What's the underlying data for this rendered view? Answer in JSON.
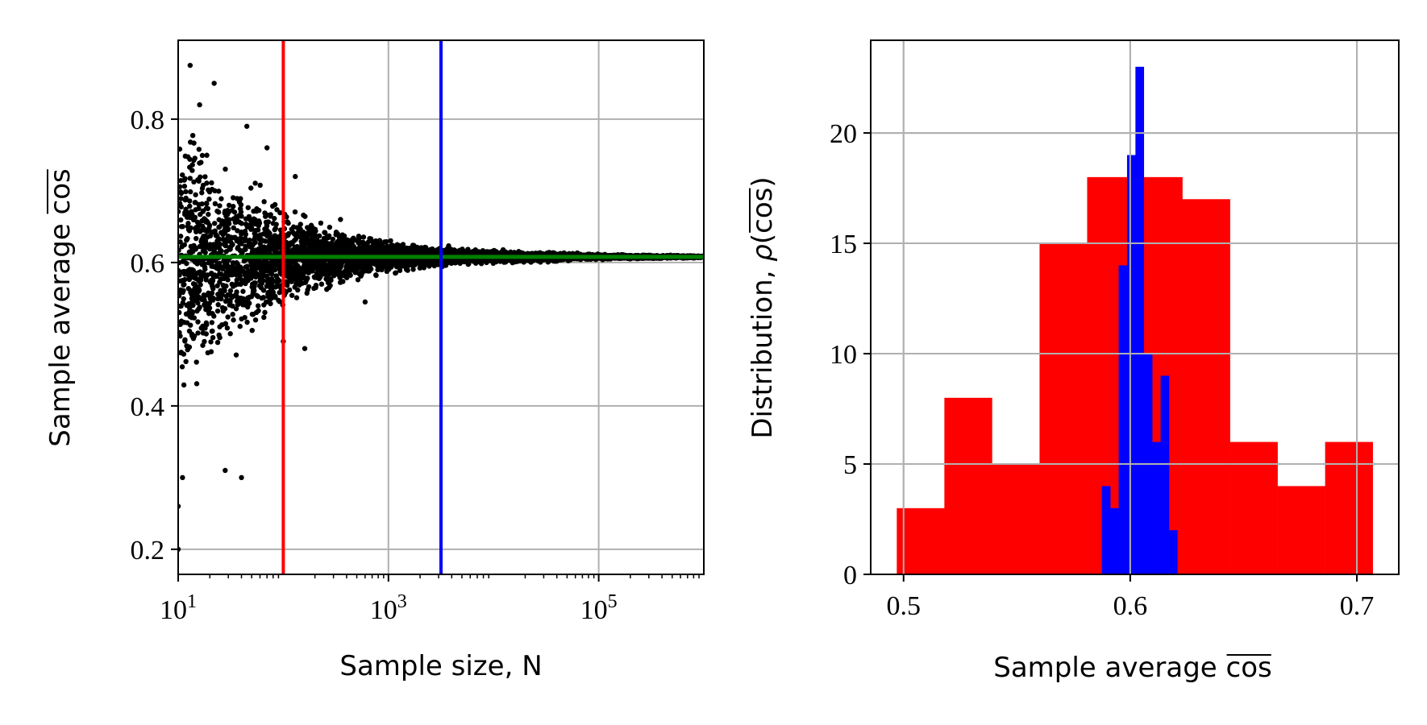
{
  "chart_data": [
    {
      "type": "scatter",
      "xlabel": "Sample size, N",
      "ylabel_prefix": "Sample average ",
      "ylabel_overline": "cos",
      "xscale": "log",
      "xlim": [
        10,
        1000000
      ],
      "ylim": [
        0.165,
        0.91
      ],
      "x_ticks": [
        {
          "value": 10,
          "base": "10",
          "exp": "1"
        },
        {
          "value": 1000,
          "base": "10",
          "exp": "3"
        },
        {
          "value": 100000,
          "base": "10",
          "exp": "5"
        }
      ],
      "y_ticks": [
        {
          "value": 0.2,
          "label": "0.2"
        },
        {
          "value": 0.4,
          "label": "0.4"
        },
        {
          "value": 0.6,
          "label": "0.6"
        },
        {
          "value": 0.8,
          "label": "0.8"
        }
      ],
      "grid": true,
      "vlines": [
        {
          "x": 100,
          "color": "#ff0000"
        },
        {
          "x": 3162,
          "color": "#0000ff"
        }
      ],
      "hlines": [
        {
          "y": 0.6079,
          "color": "#008000"
        }
      ],
      "scatter_color": "#000000",
      "scatter_envelope": [
        {
          "n": 10,
          "lo": 0.3,
          "hi": 0.86
        },
        {
          "n": 30,
          "lo": 0.43,
          "hi": 0.78
        },
        {
          "n": 100,
          "lo": 0.5,
          "hi": 0.7
        },
        {
          "n": 300,
          "lo": 0.55,
          "hi": 0.665
        },
        {
          "n": 1000,
          "lo": 0.575,
          "hi": 0.64
        },
        {
          "n": 3162,
          "lo": 0.587,
          "hi": 0.628
        },
        {
          "n": 10000,
          "lo": 0.595,
          "hi": 0.62
        },
        {
          "n": 100000,
          "lo": 0.603,
          "hi": 0.613
        },
        {
          "n": 1000000,
          "lo": 0.606,
          "hi": 0.61
        }
      ],
      "scatter_outliers": [
        {
          "x": 10,
          "y": 0.2
        },
        {
          "x": 10,
          "y": 0.26
        },
        {
          "x": 11,
          "y": 0.3
        },
        {
          "x": 13,
          "y": 0.875
        },
        {
          "x": 16,
          "y": 0.82
        },
        {
          "x": 22,
          "y": 0.85
        },
        {
          "x": 28,
          "y": 0.31
        },
        {
          "x": 40,
          "y": 0.3
        },
        {
          "x": 45,
          "y": 0.79
        },
        {
          "x": 100,
          "y": 0.49
        },
        {
          "x": 70,
          "y": 0.76
        },
        {
          "x": 130,
          "y": 0.72
        },
        {
          "x": 350,
          "y": 0.66
        },
        {
          "x": 160,
          "y": 0.48
        },
        {
          "x": 600,
          "y": 0.545
        }
      ]
    },
    {
      "type": "bar",
      "xlabel_prefix": "Sample average ",
      "xlabel_overline": "cos",
      "ylabel_prefix": "Distribution, ",
      "ylabel_rho": "ρ",
      "ylabel_open": "(",
      "ylabel_overline": "cos",
      "ylabel_close": ")",
      "xlim": [
        0.4855,
        0.7185
      ],
      "ylim": [
        0,
        24.2
      ],
      "x_ticks": [
        {
          "value": 0.5,
          "label": "0.5"
        },
        {
          "value": 0.6,
          "label": "0.6"
        },
        {
          "value": 0.7,
          "label": "0.7"
        }
      ],
      "y_ticks": [
        {
          "value": 0,
          "label": "0"
        },
        {
          "value": 5,
          "label": "5"
        },
        {
          "value": 10,
          "label": "10"
        },
        {
          "value": 15,
          "label": "15"
        },
        {
          "value": 20,
          "label": "20"
        }
      ],
      "grid": true,
      "series": [
        {
          "color": "#ff0000",
          "bin_edges": [
            0.497,
            0.518,
            0.539,
            0.56,
            0.581,
            0.602,
            0.623,
            0.644,
            0.665,
            0.686,
            0.707
          ],
          "values": [
            3,
            8,
            5,
            15,
            18,
            18,
            17,
            6,
            4,
            6
          ]
        },
        {
          "color": "#0000ff",
          "bin_edges": [
            0.5875,
            0.5912,
            0.5949,
            0.5986,
            0.6023,
            0.606,
            0.6097,
            0.6134,
            0.6171,
            0.6208,
            0.6245
          ],
          "values": [
            4,
            3,
            14,
            19,
            23,
            10,
            6,
            9,
            2,
            0
          ]
        }
      ]
    }
  ]
}
